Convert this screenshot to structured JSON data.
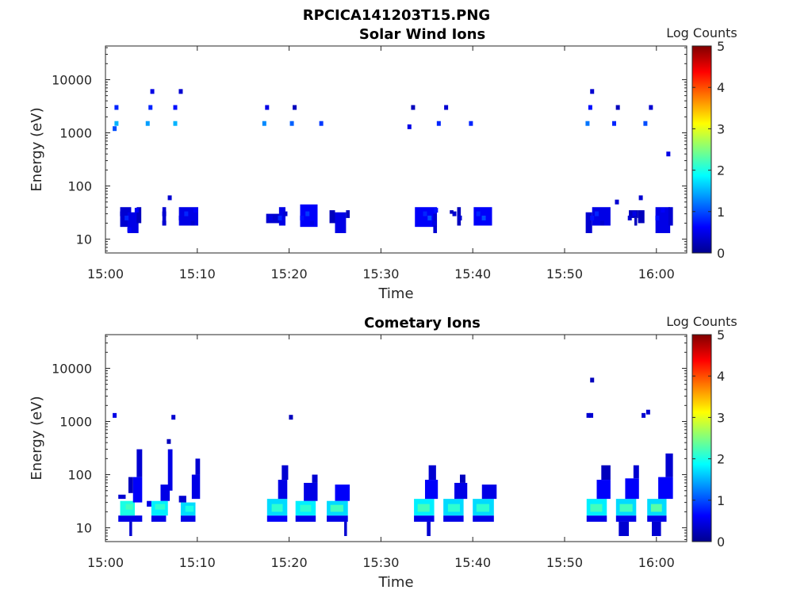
{
  "figure": {
    "title": "RPCICA141203T15.PNG"
  },
  "colorbar": {
    "label": "Log Counts",
    "ticks": [
      "0",
      "1",
      "2",
      "3",
      "4",
      "5"
    ],
    "range": [
      0,
      5
    ],
    "colormap": "jet"
  },
  "chart_data": [
    {
      "type": "heatmap",
      "title": "Solar Wind Ions",
      "xlabel": "Time",
      "ylabel": "Energy (eV)",
      "xticks": [
        "15:00",
        "15:10",
        "15:20",
        "15:30",
        "15:40",
        "15:50",
        "16:00"
      ],
      "yticks": [
        "10",
        "100",
        "1000",
        "10000"
      ],
      "xlim_minutes": [
        0,
        63.3
      ],
      "ylim_eV": [
        5.5,
        43000
      ],
      "yscale": "log",
      "cells": [
        [
          1.2,
          3000,
          0.8
        ],
        [
          1.2,
          1500,
          1.5
        ],
        [
          1.0,
          1200,
          1.0
        ],
        [
          4.6,
          1500,
          1.4
        ],
        [
          4.9,
          3000,
          0.8
        ],
        [
          5.1,
          6000,
          0.5
        ],
        [
          7.6,
          3000,
          0.7
        ],
        [
          7.6,
          1500,
          1.5
        ],
        [
          8.2,
          6000,
          0.4
        ],
        [
          17.3,
          1500,
          1.3
        ],
        [
          17.6,
          3000,
          0.5
        ],
        [
          20.3,
          1500,
          1.1
        ],
        [
          20.6,
          3000,
          0.3
        ],
        [
          23.5,
          1500,
          0.9
        ],
        [
          33.1,
          1300,
          0.5
        ],
        [
          33.5,
          3000,
          0.3
        ],
        [
          36.3,
          1500,
          0.8
        ],
        [
          37.1,
          3000,
          0.4
        ],
        [
          39.8,
          1500,
          0.8
        ],
        [
          52.5,
          1500,
          1.2
        ],
        [
          52.8,
          3000,
          0.7
        ],
        [
          53.0,
          6000,
          0.4
        ],
        [
          55.4,
          1500,
          0.8
        ],
        [
          55.8,
          3000,
          0.3
        ],
        [
          58.8,
          1500,
          1.0
        ],
        [
          59.4,
          3000,
          0.4
        ],
        [
          61.3,
          400,
          0.5
        ],
        [
          7.0,
          60,
          0.4
        ],
        [
          55.7,
          50,
          0.4
        ],
        [
          58.3,
          60,
          0.4
        ],
        [
          1.8,
          30,
          0.4
        ],
        [
          2.3,
          25,
          0.8
        ],
        [
          2.8,
          20,
          0.5
        ],
        [
          2.6,
          15,
          0.6
        ],
        [
          3.4,
          35,
          0.6
        ],
        [
          6.4,
          30,
          0.4
        ],
        [
          6.4,
          20,
          0.4
        ],
        [
          8.2,
          25,
          0.5
        ],
        [
          8.8,
          30,
          0.8
        ],
        [
          9.5,
          20,
          0.4
        ],
        [
          9.8,
          35,
          0.6
        ],
        [
          18.0,
          25,
          0.5
        ],
        [
          19.0,
          25,
          0.8
        ],
        [
          19.6,
          30,
          0.4
        ],
        [
          21.4,
          25,
          0.7
        ],
        [
          22.0,
          30,
          0.9
        ],
        [
          22.5,
          20,
          0.5
        ],
        [
          25.6,
          25,
          0.5
        ],
        [
          25.9,
          15,
          0.5
        ],
        [
          34.8,
          30,
          0.8
        ],
        [
          35.3,
          25,
          1.0
        ],
        [
          35.8,
          20,
          0.5
        ],
        [
          36.0,
          35,
          0.7
        ],
        [
          38.0,
          30,
          0.4
        ],
        [
          38.6,
          25,
          0.4
        ],
        [
          40.6,
          30,
          0.8
        ],
        [
          41.2,
          25,
          1.0
        ],
        [
          41.8,
          35,
          0.6
        ],
        [
          53.0,
          25,
          0.7
        ],
        [
          53.5,
          30,
          0.8
        ],
        [
          54.1,
          20,
          0.4
        ],
        [
          57.1,
          25,
          0.4
        ],
        [
          57.6,
          30,
          0.5
        ],
        [
          60.1,
          25,
          0.7
        ],
        [
          60.7,
          35,
          0.6
        ]
      ],
      "blocks": [
        [
          1.6,
          2.8,
          17,
          40,
          0.4
        ],
        [
          2.4,
          3.6,
          13,
          32,
          0.5
        ],
        [
          3.4,
          3.9,
          20,
          40,
          0.3
        ],
        [
          6.2,
          6.6,
          18,
          40,
          0.4
        ],
        [
          8.0,
          10.1,
          18,
          40,
          0.5
        ],
        [
          17.5,
          19.6,
          20,
          30,
          0.4
        ],
        [
          18.9,
          19.6,
          18,
          40,
          0.5
        ],
        [
          21.2,
          23.1,
          17,
          45,
          0.6
        ],
        [
          24.4,
          25.0,
          20,
          35,
          0.3
        ],
        [
          25.0,
          26.2,
          13,
          32,
          0.5
        ],
        [
          26.2,
          26.6,
          25,
          35,
          0.3
        ],
        [
          33.7,
          36.1,
          17,
          40,
          0.6
        ],
        [
          35.7,
          36.1,
          13,
          30,
          0.4
        ],
        [
          37.5,
          37.9,
          30,
          35,
          0.3
        ],
        [
          38.3,
          38.7,
          18,
          40,
          0.3
        ],
        [
          40.1,
          42.1,
          18,
          40,
          0.6
        ],
        [
          52.3,
          53.0,
          13,
          32,
          0.4
        ],
        [
          53.0,
          55.0,
          18,
          40,
          0.5
        ],
        [
          57.0,
          58.0,
          25,
          35,
          0.3
        ],
        [
          58.0,
          58.7,
          20,
          35,
          0.3
        ],
        [
          57.6,
          57.9,
          18,
          25,
          0.3
        ],
        [
          59.9,
          61.5,
          13,
          40,
          0.5
        ],
        [
          61.3,
          61.8,
          18,
          40,
          0.4
        ]
      ]
    },
    {
      "type": "heatmap",
      "title": "Cometary Ions",
      "xlabel": "Time",
      "ylabel": "Energy (eV)",
      "xticks": [
        "15:00",
        "15:10",
        "15:20",
        "15:30",
        "15:40",
        "15:50",
        "16:00"
      ],
      "yticks": [
        "10",
        "100",
        "1000",
        "10000"
      ],
      "xlim_minutes": [
        0,
        63.3
      ],
      "ylim_eV": [
        5.5,
        43000
      ],
      "yscale": "log",
      "blocks": [
        [
          1.4,
          4.0,
          13,
          17,
          0.5
        ],
        [
          1.6,
          3.2,
          17,
          32,
          2.0
        ],
        [
          2.2,
          3.0,
          22,
          28,
          2.2
        ],
        [
          1.4,
          2.2,
          35,
          42,
          0.4
        ],
        [
          3.0,
          4.0,
          30,
          90,
          0.6
        ],
        [
          3.4,
          4.0,
          90,
          300,
          0.4
        ],
        [
          2.5,
          3.0,
          45,
          90,
          0.3
        ],
        [
          4.5,
          5.0,
          25,
          32,
          0.5
        ],
        [
          5.0,
          6.6,
          13,
          17,
          0.5
        ],
        [
          5.0,
          6.8,
          17,
          32,
          1.8
        ],
        [
          5.4,
          6.5,
          22,
          28,
          2.1
        ],
        [
          6.0,
          7.0,
          32,
          65,
          0.5
        ],
        [
          6.8,
          7.3,
          50,
          300,
          0.5
        ],
        [
          8.2,
          9.8,
          13,
          17,
          0.5
        ],
        [
          8.2,
          9.8,
          17,
          30,
          1.7
        ],
        [
          8.7,
          9.6,
          20,
          26,
          2.0
        ],
        [
          8.0,
          8.8,
          30,
          40,
          0.4
        ],
        [
          9.4,
          10.3,
          35,
          100,
          0.5
        ],
        [
          9.8,
          10.3,
          100,
          200,
          0.4
        ],
        [
          17.6,
          19.8,
          13,
          17,
          0.6
        ],
        [
          17.6,
          19.8,
          17,
          35,
          1.7
        ],
        [
          18.1,
          19.3,
          20,
          28,
          2.1
        ],
        [
          18.8,
          19.8,
          35,
          80,
          0.5
        ],
        [
          19.2,
          19.9,
          80,
          150,
          0.4
        ],
        [
          20.7,
          22.9,
          13,
          17,
          0.5
        ],
        [
          20.7,
          22.9,
          17,
          32,
          1.8
        ],
        [
          21.2,
          22.4,
          20,
          27,
          2.1
        ],
        [
          21.6,
          23.1,
          32,
          70,
          0.5
        ],
        [
          22.5,
          23.1,
          70,
          100,
          0.4
        ],
        [
          24.1,
          26.4,
          13,
          17,
          0.5
        ],
        [
          24.1,
          26.4,
          17,
          32,
          1.7
        ],
        [
          24.5,
          25.9,
          20,
          27,
          2.2
        ],
        [
          25.0,
          26.6,
          32,
          65,
          0.6
        ],
        [
          33.6,
          35.8,
          13,
          17,
          0.5
        ],
        [
          33.6,
          35.8,
          17,
          35,
          1.8
        ],
        [
          34.0,
          35.3,
          20,
          28,
          2.2
        ],
        [
          34.8,
          36.2,
          35,
          80,
          0.6
        ],
        [
          35.2,
          36.0,
          80,
          150,
          0.4
        ],
        [
          36.8,
          39.0,
          13,
          17,
          0.5
        ],
        [
          36.8,
          39.0,
          17,
          35,
          1.7
        ],
        [
          37.3,
          38.6,
          20,
          28,
          2.1
        ],
        [
          38.0,
          39.4,
          35,
          70,
          0.5
        ],
        [
          38.6,
          39.2,
          70,
          100,
          0.3
        ],
        [
          40.0,
          42.3,
          13,
          17,
          0.5
        ],
        [
          40.0,
          42.3,
          17,
          35,
          1.7
        ],
        [
          40.4,
          41.8,
          20,
          28,
          2.1
        ],
        [
          41.0,
          42.6,
          35,
          65,
          0.5
        ],
        [
          52.4,
          54.6,
          13,
          17,
          0.5
        ],
        [
          52.4,
          54.6,
          17,
          35,
          1.8
        ],
        [
          52.8,
          54.1,
          20,
          28,
          2.2
        ],
        [
          53.5,
          55.0,
          35,
          80,
          0.6
        ],
        [
          54.0,
          55.0,
          80,
          150,
          0.3
        ],
        [
          55.6,
          57.8,
          13,
          17,
          0.5
        ],
        [
          55.6,
          57.8,
          17,
          35,
          1.7
        ],
        [
          56.0,
          57.4,
          20,
          28,
          2.2
        ],
        [
          56.6,
          58.1,
          35,
          85,
          0.6
        ],
        [
          57.5,
          58.1,
          85,
          150,
          0.4
        ],
        [
          59.0,
          61.1,
          13,
          17,
          0.5
        ],
        [
          59.0,
          61.1,
          17,
          35,
          1.7
        ],
        [
          59.4,
          60.6,
          20,
          28,
          2.3
        ],
        [
          60.2,
          61.8,
          35,
          90,
          0.6
        ],
        [
          61.0,
          61.8,
          90,
          250,
          0.4
        ],
        [
          2.6,
          2.9,
          7,
          13,
          0.4
        ],
        [
          26.0,
          26.3,
          7,
          13,
          0.4
        ],
        [
          35.0,
          35.4,
          7,
          13,
          0.4
        ],
        [
          55.9,
          57.0,
          7,
          13,
          0.4
        ],
        [
          59.5,
          60.5,
          7,
          13,
          0.4
        ]
      ],
      "cells": [
        [
          1.0,
          1300,
          0.5
        ],
        [
          7.4,
          1200,
          0.4
        ],
        [
          6.9,
          420,
          0.3
        ],
        [
          20.2,
          1200,
          0.3
        ],
        [
          52.6,
          1300,
          0.4
        ],
        [
          52.9,
          1300,
          0.4
        ],
        [
          53.0,
          6000,
          0.3
        ],
        [
          58.6,
          1300,
          0.4
        ],
        [
          59.1,
          1500,
          0.4
        ]
      ]
    }
  ]
}
